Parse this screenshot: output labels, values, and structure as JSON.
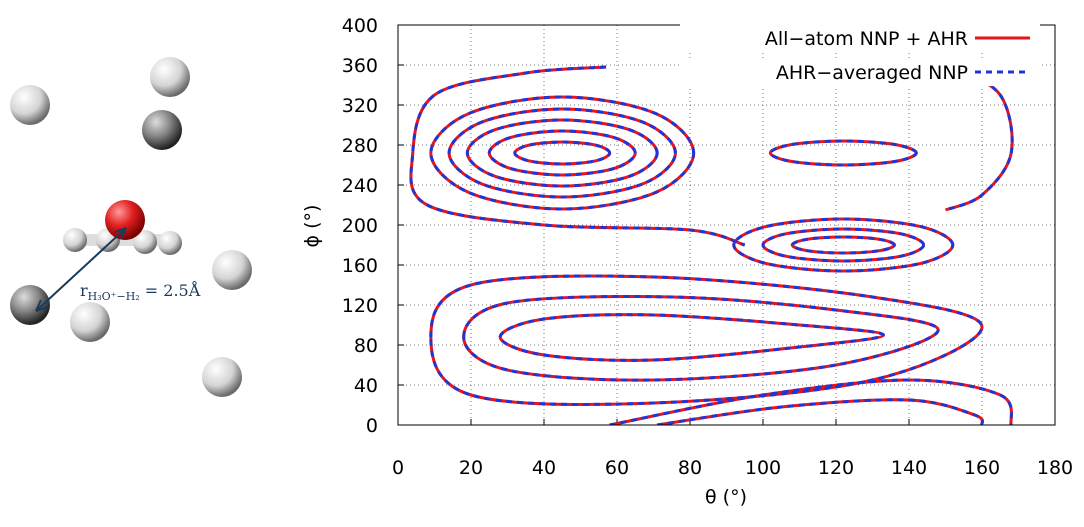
{
  "chart_data": {
    "type": "contour",
    "xlabel": "θ (°)",
    "ylabel": "ϕ (°)",
    "xlim": [
      0,
      180
    ],
    "xticks": [
      0,
      20,
      40,
      60,
      80,
      100,
      120,
      140,
      160,
      180
    ],
    "ylim": [
      0,
      400
    ],
    "yticks": [
      0,
      40,
      80,
      120,
      160,
      200,
      240,
      280,
      320,
      360,
      400
    ],
    "grid": true,
    "legend": "upper right",
    "series": [
      {
        "name": "All−atom NNP + AHR",
        "color": "#e8141c",
        "line_style": "solid"
      },
      {
        "name": "AHR−averaged NNP",
        "color": "#1f35d6",
        "line_style": "dashed"
      }
    ],
    "contours": [
      {
        "closed": true,
        "x": [
          58,
          54.2,
          45,
          35.8,
          32,
          35.8,
          45,
          54.2
        ],
        "y": [
          272,
          279.8,
          283,
          279.8,
          272,
          264.2,
          261,
          264.2
        ]
      },
      {
        "closed": true,
        "x": [
          65,
          59.1,
          45,
          30.9,
          25,
          30.9,
          45,
          59.1
        ],
        "y": [
          272,
          287.6,
          294,
          287.6,
          272,
          256.4,
          250,
          256.4
        ]
      },
      {
        "closed": true,
        "x": [
          71,
          63.4,
          45,
          26.6,
          19,
          26.6,
          45,
          63.4
        ],
        "y": [
          272,
          295.3,
          305,
          295.3,
          272,
          248.7,
          239,
          248.7
        ]
      },
      {
        "closed": true,
        "x": [
          76,
          66.9,
          45,
          23.1,
          14,
          23.1,
          45,
          66.9
        ],
        "y": [
          272,
          303.1,
          316,
          303.1,
          272,
          240.9,
          228,
          240.9
        ]
      },
      {
        "closed": true,
        "x": [
          81,
          70.5,
          45,
          19.5,
          9,
          19.5,
          45,
          70.5
        ],
        "y": [
          272,
          311.6,
          328,
          311.6,
          272,
          232.4,
          216,
          232.4
        ]
      },
      {
        "closed": true,
        "x": [
          142,
          136.1,
          122,
          107.9,
          102,
          107.9,
          122,
          136.1
        ],
        "y": [
          272,
          280.5,
          284,
          280.5,
          272,
          263.5,
          260,
          263.5
        ]
      },
      {
        "closed": true,
        "x": [
          136,
          131.9,
          122,
          112.1,
          108,
          112.1,
          122,
          131.9
        ],
        "y": [
          180,
          185.7,
          188,
          185.7,
          180,
          174.3,
          172,
          174.3
        ]
      },
      {
        "closed": true,
        "x": [
          144,
          137.6,
          122,
          106.4,
          100,
          106.4,
          122,
          137.6
        ],
        "y": [
          180,
          191.3,
          196,
          191.3,
          180,
          168.7,
          164,
          168.7
        ]
      },
      {
        "closed": true,
        "x": [
          152,
          143.2,
          122,
          100.8,
          92,
          100.8,
          122,
          143.2
        ],
        "y": [
          180,
          198.4,
          206,
          198.4,
          180,
          161.6,
          154,
          161.6
        ]
      },
      {
        "closed": true,
        "x": [
          28,
          40,
          70,
          110,
          133,
          110,
          70,
          40
        ],
        "y": [
          88,
          106,
          110,
          100,
          90,
          78,
          65,
          70
        ]
      },
      {
        "closed": true,
        "x": [
          18,
          30,
          75,
          120,
          148,
          120,
          70,
          30
        ],
        "y": [
          88,
          122,
          128,
          115,
          95,
          60,
          45,
          55
        ]
      },
      {
        "closed": true,
        "x": [
          9,
          20,
          70,
          130,
          160,
          130,
          70,
          20
        ],
        "y": [
          88,
          140,
          148,
          128,
          98,
          45,
          22,
          30
        ]
      },
      {
        "closed": false,
        "x": [
          58,
          100,
          140,
          165,
          168
        ],
        "y": [
          0,
          30,
          45,
          30,
          0
        ]
      },
      {
        "closed": false,
        "x": [
          71,
          105,
          140,
          158,
          160
        ],
        "y": [
          0,
          18,
          25,
          10,
          0
        ]
      },
      {
        "closed": false,
        "x": [
          57,
          35,
          10,
          4,
          8,
          40,
          80,
          95
        ],
        "y": [
          358,
          352,
          330,
          270,
          220,
          200,
          195,
          180
        ]
      },
      {
        "closed": false,
        "x": [
          152,
          165,
          168,
          160,
          150
        ],
        "y": [
          358,
          330,
          272,
          230,
          215
        ]
      }
    ],
    "distance_label": {
      "main": "r",
      "sub": "H₃O⁺−H₂",
      "rest": " = 2.5Å"
    }
  }
}
